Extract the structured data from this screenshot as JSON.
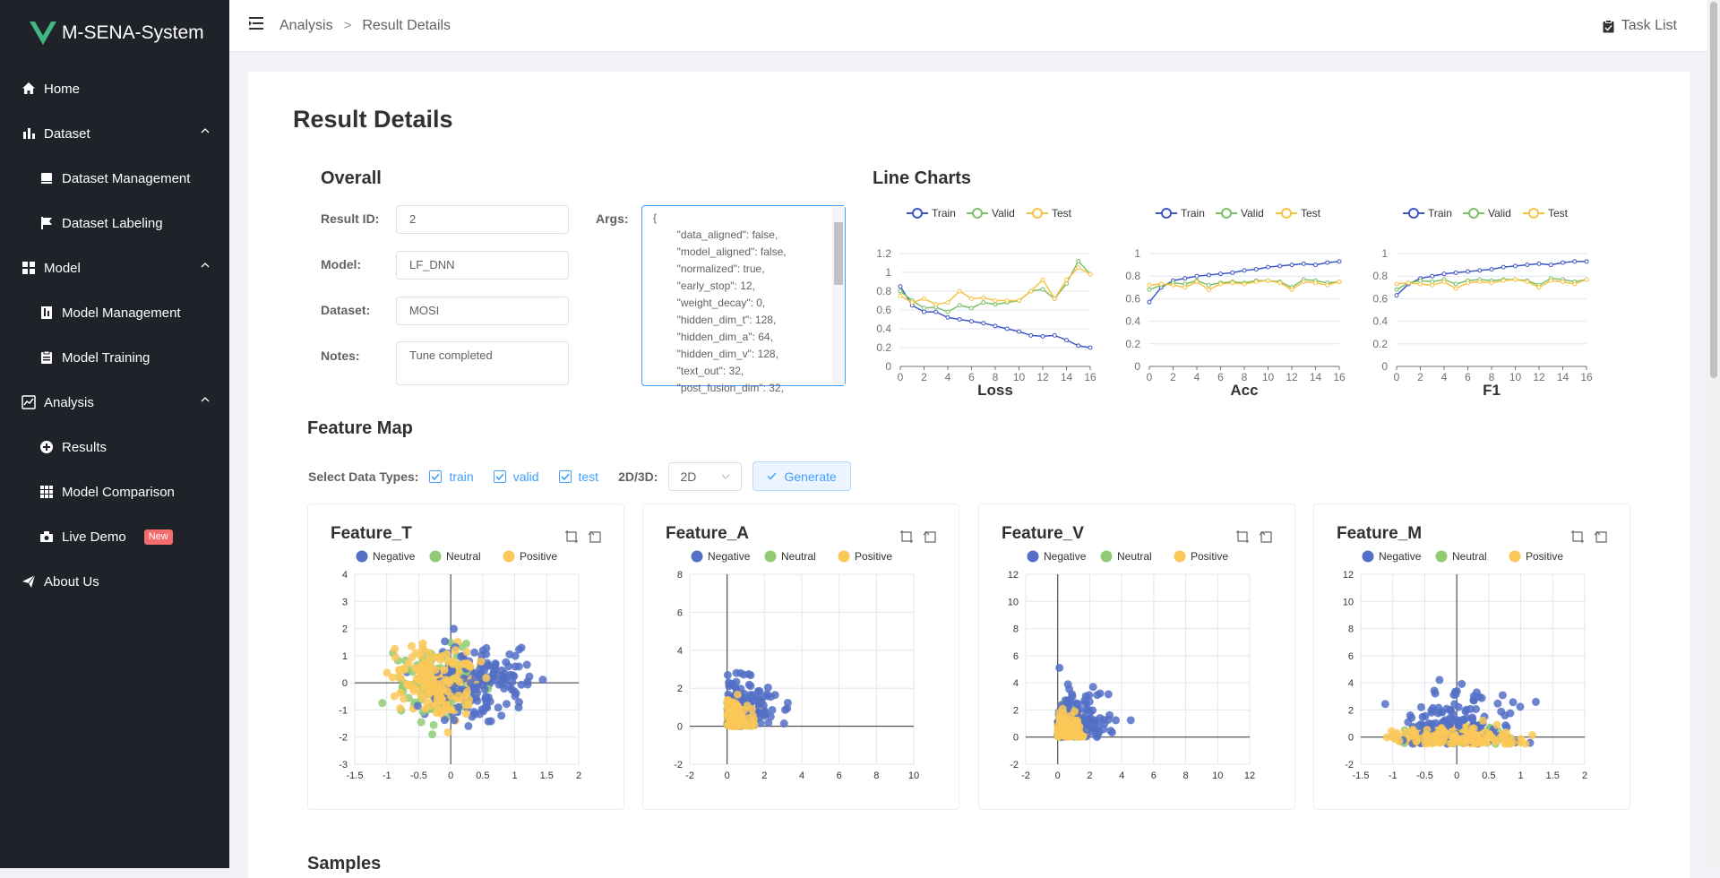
{
  "app": {
    "title": "M-SENA-System"
  },
  "colors": {
    "accent": "#409eff",
    "train": "#3f57c6",
    "valid": "#7dc068",
    "test": "#f6c343",
    "negative": "#5470c6",
    "neutral": "#91cc75",
    "positive": "#fac858"
  },
  "sidebar": {
    "items": [
      {
        "label": "Home",
        "icon": "home-icon"
      },
      {
        "label": "Dataset",
        "icon": "bar-chart-icon"
      },
      {
        "label": "Dataset Management",
        "icon": "database-icon"
      },
      {
        "label": "Dataset Labeling",
        "icon": "flag-icon"
      },
      {
        "label": "Model",
        "icon": "grid-icon"
      },
      {
        "label": "Model Management",
        "icon": "book-icon"
      },
      {
        "label": "Model Training",
        "icon": "clipboard-icon"
      },
      {
        "label": "Analysis",
        "icon": "line-chart-icon"
      },
      {
        "label": "Results",
        "icon": "plus-circle-icon"
      },
      {
        "label": "Model Comparison",
        "icon": "grid-small-icon"
      },
      {
        "label": "Live Demo",
        "icon": "camera-icon",
        "badge": "New"
      },
      {
        "label": "About Us",
        "icon": "send-icon"
      }
    ]
  },
  "header": {
    "breadcrumb": [
      "Analysis",
      "Result Details"
    ],
    "separator": ">",
    "task_list": "Task List"
  },
  "page": {
    "title": "Result Details"
  },
  "overall": {
    "title": "Overall",
    "result_id_label": "Result ID:",
    "result_id": "2",
    "model_label": "Model:",
    "model": "LF_DNN",
    "dataset_label": "Dataset:",
    "dataset": "MOSI",
    "notes_label": "Notes:",
    "notes": "Tune completed",
    "args_label": "Args:",
    "args_text": "{\n        \"data_aligned\": false,\n        \"model_aligned\": false,\n        \"normalized\": true,\n        \"early_stop\": 12,\n        \"weight_decay\": 0,\n        \"hidden_dim_t\": 128,\n        \"hidden_dim_a\": 64,\n        \"hidden_dim_v\": 128,\n        \"text_out\": 32,\n        \"post_fusion_dim\": 32,"
  },
  "line_charts": {
    "title": "Line Charts"
  },
  "chart_data": [
    {
      "type": "line",
      "title": "Loss",
      "x": [
        0,
        1,
        2,
        3,
        4,
        5,
        6,
        7,
        8,
        9,
        10,
        11,
        12,
        13,
        14,
        15,
        16
      ],
      "ylim": [
        0,
        1.2
      ],
      "yticks": [
        0,
        0.2,
        0.4,
        0.6,
        0.8,
        1,
        1.2
      ],
      "xticks": [
        0,
        2,
        4,
        6,
        8,
        10,
        12,
        14,
        16
      ],
      "series": [
        {
          "name": "Train",
          "values": [
            0.85,
            0.65,
            0.58,
            0.58,
            0.52,
            0.5,
            0.48,
            0.46,
            0.43,
            0.4,
            0.37,
            0.33,
            0.32,
            0.33,
            0.28,
            0.22,
            0.2
          ]
        },
        {
          "name": "Valid",
          "values": [
            0.8,
            0.7,
            0.62,
            0.63,
            0.58,
            0.65,
            0.62,
            0.68,
            0.66,
            0.68,
            0.7,
            0.8,
            0.82,
            0.72,
            0.88,
            1.12,
            0.98
          ]
        },
        {
          "name": "Test",
          "values": [
            0.75,
            0.68,
            0.72,
            0.66,
            0.68,
            0.8,
            0.72,
            0.73,
            0.7,
            0.7,
            0.7,
            0.8,
            0.92,
            0.72,
            0.92,
            1.05,
            0.98
          ]
        }
      ]
    },
    {
      "type": "line",
      "title": "Acc",
      "x": [
        0,
        1,
        2,
        3,
        4,
        5,
        6,
        7,
        8,
        9,
        10,
        11,
        12,
        13,
        14,
        15,
        16
      ],
      "ylim": [
        0,
        1
      ],
      "yticks": [
        0,
        0.2,
        0.4,
        0.6,
        0.8,
        1
      ],
      "xticks": [
        0,
        2,
        4,
        6,
        8,
        10,
        12,
        14,
        16
      ],
      "series": [
        {
          "name": "Train",
          "values": [
            0.57,
            0.7,
            0.76,
            0.78,
            0.8,
            0.81,
            0.82,
            0.83,
            0.85,
            0.86,
            0.88,
            0.89,
            0.9,
            0.91,
            0.9,
            0.92,
            0.93
          ]
        },
        {
          "name": "Valid",
          "values": [
            0.68,
            0.72,
            0.74,
            0.73,
            0.76,
            0.72,
            0.74,
            0.75,
            0.74,
            0.76,
            0.76,
            0.75,
            0.7,
            0.77,
            0.76,
            0.74,
            0.75
          ]
        },
        {
          "name": "Test",
          "values": [
            0.72,
            0.73,
            0.72,
            0.7,
            0.75,
            0.68,
            0.73,
            0.74,
            0.73,
            0.75,
            0.76,
            0.74,
            0.68,
            0.75,
            0.74,
            0.72,
            0.75
          ]
        }
      ]
    },
    {
      "type": "line",
      "title": "F1",
      "x": [
        0,
        1,
        2,
        3,
        4,
        5,
        6,
        7,
        8,
        9,
        10,
        11,
        12,
        13,
        14,
        15,
        16
      ],
      "ylim": [
        0,
        1
      ],
      "yticks": [
        0,
        0.2,
        0.4,
        0.6,
        0.8,
        1
      ],
      "xticks": [
        0,
        2,
        4,
        6,
        8,
        10,
        12,
        14,
        16
      ],
      "series": [
        {
          "name": "Train",
          "values": [
            0.63,
            0.73,
            0.78,
            0.8,
            0.82,
            0.83,
            0.84,
            0.85,
            0.86,
            0.88,
            0.89,
            0.9,
            0.91,
            0.9,
            0.92,
            0.93,
            0.93
          ]
        },
        {
          "name": "Valid",
          "values": [
            0.68,
            0.74,
            0.76,
            0.75,
            0.77,
            0.73,
            0.76,
            0.77,
            0.76,
            0.77,
            0.77,
            0.76,
            0.72,
            0.78,
            0.77,
            0.75,
            0.77
          ]
        },
        {
          "name": "Test",
          "values": [
            0.73,
            0.74,
            0.73,
            0.72,
            0.75,
            0.69,
            0.74,
            0.75,
            0.74,
            0.76,
            0.77,
            0.75,
            0.7,
            0.76,
            0.75,
            0.73,
            0.77
          ]
        }
      ]
    }
  ],
  "feature_map": {
    "title": "Feature Map",
    "select_label": "Select Data Types:",
    "types": [
      "train",
      "valid",
      "test"
    ],
    "dim_label": "2D/3D:",
    "dim_value": "2D",
    "generate_label": "Generate",
    "legend": [
      "Negative",
      "Neutral",
      "Positive"
    ],
    "plots": [
      {
        "title": "Feature_T",
        "xticks": [
          "-1.5",
          "-1",
          "-0.5",
          "0",
          "0.5",
          "1",
          "1.5",
          "2"
        ],
        "yticks": [
          "4",
          "3",
          "2",
          "1",
          "0",
          "-1",
          "-2",
          "-3"
        ],
        "xlim": [
          -1.5,
          2
        ],
        "ylim": [
          -3,
          4
        ]
      },
      {
        "title": "Feature_A",
        "xticks": [
          "-2",
          "0",
          "2",
          "4",
          "6",
          "8",
          "10"
        ],
        "yticks": [
          "8",
          "6",
          "4",
          "2",
          "0",
          "-2"
        ],
        "xlim": [
          -2,
          10
        ],
        "ylim": [
          -2,
          8
        ]
      },
      {
        "title": "Feature_V",
        "xticks": [
          "-2",
          "0",
          "2",
          "4",
          "6",
          "8",
          "10",
          "12"
        ],
        "yticks": [
          "12",
          "10",
          "8",
          "6",
          "4",
          "2",
          "0",
          "-2"
        ],
        "xlim": [
          -2,
          12
        ],
        "ylim": [
          -2,
          12
        ]
      },
      {
        "title": "Feature_M",
        "xticks": [
          "-1.5",
          "-1",
          "-0.5",
          "0",
          "0.5",
          "1",
          "1.5",
          "2"
        ],
        "yticks": [
          "12",
          "10",
          "8",
          "6",
          "4",
          "2",
          "0",
          "-2"
        ],
        "xlim": [
          -1.5,
          2
        ],
        "ylim": [
          -2,
          12
        ]
      }
    ]
  },
  "samples": {
    "title": "Samples"
  }
}
